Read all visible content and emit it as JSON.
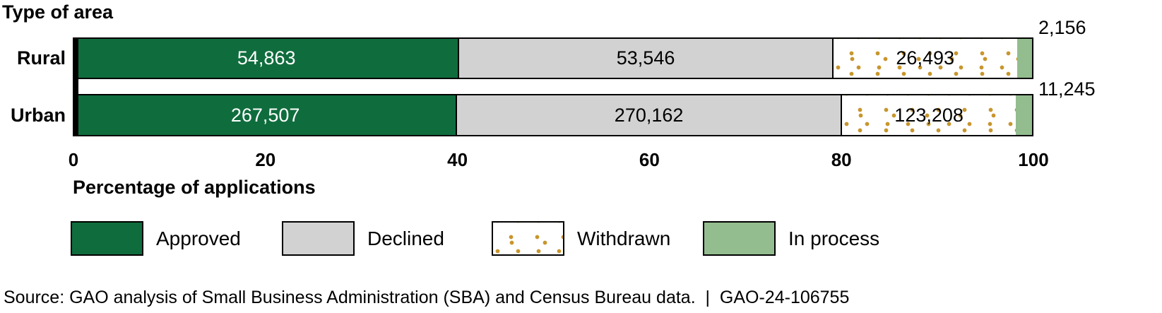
{
  "chart_data": {
    "type": "stacked_bar_horizontal",
    "title": "Type of area",
    "xlabel": "Percentage of applications",
    "xlim": [
      0,
      100
    ],
    "x_ticks": [
      0,
      20,
      40,
      60,
      80,
      100
    ],
    "grid": false,
    "legend_position": "bottom",
    "legend": [
      {
        "label": "Approved",
        "pattern": "solid",
        "color": "#0f6d3d",
        "value_color": "#ffffff"
      },
      {
        "label": "Declined",
        "pattern": "solid",
        "color": "#d2d2d2",
        "value_color": "#000000"
      },
      {
        "label": "Withdrawn",
        "pattern": "dots",
        "color": "#ffffff",
        "dot_color": "#c8962d",
        "value_color": "#000000"
      },
      {
        "label": "In process",
        "pattern": "solid",
        "color": "#93bd8e",
        "value_color": "#000000"
      }
    ],
    "rows": [
      {
        "category": "Rural",
        "segments": [
          {
            "series": "Approved",
            "value": 54863,
            "label": "54,863",
            "pct": 40.03
          },
          {
            "series": "Declined",
            "value": 53546,
            "label": "53,546",
            "pct": 39.07
          },
          {
            "series": "Withdrawn",
            "value": 26493,
            "label": "26,493",
            "pct": 19.33
          },
          {
            "series": "In process",
            "value": 2156,
            "label": "2,156",
            "pct": 1.57,
            "label_outside": true
          }
        ]
      },
      {
        "category": "Urban",
        "segments": [
          {
            "series": "Approved",
            "value": 267507,
            "label": "267,507",
            "pct": 39.8
          },
          {
            "series": "Declined",
            "value": 270162,
            "label": "270,162",
            "pct": 40.2
          },
          {
            "series": "Withdrawn",
            "value": 123208,
            "label": "123,208",
            "pct": 18.33
          },
          {
            "series": "In process",
            "value": 11245,
            "label": "11,245",
            "pct": 1.67,
            "label_outside": true
          }
        ]
      }
    ]
  },
  "source_line": "Source: GAO analysis of Small Business Administration (SBA) and Census Bureau data.  |  GAO-24-106755",
  "colors": {
    "approved_green": "#0f6d3d",
    "declined_gray": "#d2d2d2",
    "withdrawn_dot_gold": "#c8962d",
    "in_process_green": "#93bd8e",
    "border_black": "#000000"
  }
}
